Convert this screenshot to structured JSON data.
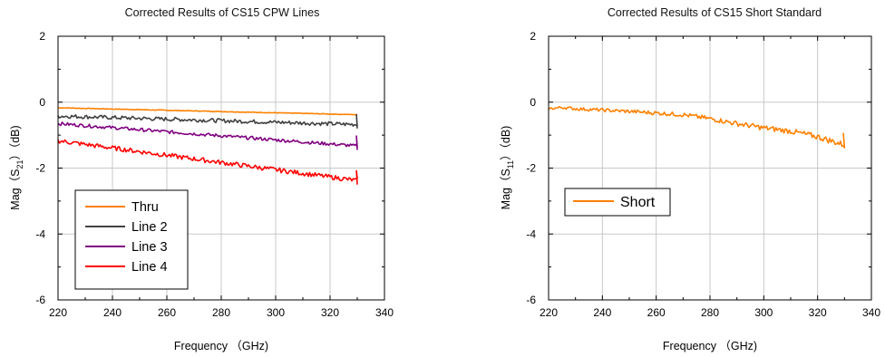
{
  "chart_data": [
    {
      "type": "line",
      "title": "Corrected Results of CS15 CPW Lines",
      "xlabel": "Frequency （GHz)",
      "ylabel_parts": {
        "pre": "Mag（S",
        "sub": "21",
        "post": "）（dB)"
      },
      "xlim": [
        220,
        340
      ],
      "ylim": [
        -6,
        2
      ],
      "x_ticks": [
        "220",
        "240",
        "260",
        "280",
        "300",
        "320",
        "340"
      ],
      "y_ticks": [
        "2",
        "0",
        "-2",
        "-4",
        "-6"
      ],
      "grid": true,
      "legend_position": "bottom-left",
      "series": [
        {
          "name": "Thru",
          "color": "#ff8000",
          "x_start": 220,
          "x_end": 330,
          "y_start": -0.17,
          "y_end": -0.38,
          "noise": 0.01
        },
        {
          "name": "Line 2",
          "color": "#404040",
          "x_start": 220,
          "x_end": 330,
          "y_start": -0.42,
          "y_end": -0.68,
          "noise": 0.06
        },
        {
          "name": "Line 3",
          "color": "#800080",
          "x_start": 220,
          "x_end": 330,
          "y_start": -0.65,
          "y_end": -1.33,
          "noise": 0.05
        },
        {
          "name": "Line 4",
          "color": "#ff0000",
          "x_start": 220,
          "x_end": 330,
          "y_start": -1.17,
          "y_end": -2.38,
          "noise": 0.07
        }
      ]
    },
    {
      "type": "line",
      "title": "Corrected Results of CS15 Short Standard",
      "xlabel": "Frequency （GHz)",
      "ylabel_parts": {
        "pre": "Mag（S",
        "sub": "11",
        "post": "）（dB)"
      },
      "xlim": [
        220,
        340
      ],
      "ylim": [
        -6,
        2
      ],
      "x_ticks": [
        "220",
        "240",
        "260",
        "280",
        "300",
        "320",
        "340"
      ],
      "y_ticks": [
        "2",
        "0",
        "-2",
        "-4",
        "-6"
      ],
      "grid": true,
      "legend_position": "center-left",
      "series": [
        {
          "name": "Short",
          "color": "#ff8000",
          "points": [
            [
              220,
              -0.2
            ],
            [
              225,
              -0.16
            ],
            [
              230,
              -0.2
            ],
            [
              240,
              -0.24
            ],
            [
              250,
              -0.28
            ],
            [
              260,
              -0.33
            ],
            [
              270,
              -0.38
            ],
            [
              280,
              -0.5
            ],
            [
              290,
              -0.65
            ],
            [
              300,
              -0.78
            ],
            [
              310,
              -0.88
            ],
            [
              320,
              -1.05
            ],
            [
              330,
              -1.3
            ]
          ],
          "noise": 0.04
        }
      ]
    }
  ]
}
